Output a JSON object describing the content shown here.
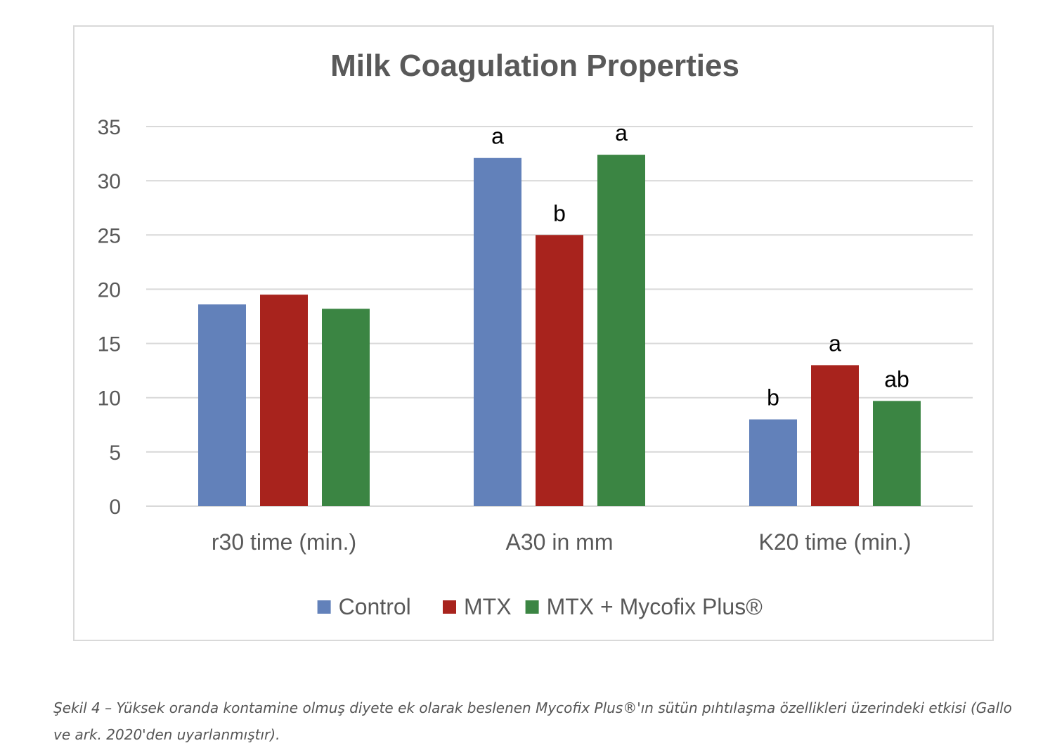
{
  "chart_data": {
    "type": "bar",
    "title": "Milk Coagulation Properties",
    "categories": [
      "r30 time (min.)",
      "A30 in mm",
      "K20 time (min.)"
    ],
    "series": [
      {
        "name": "Control",
        "color": "#6281ba",
        "values": [
          18.6,
          32.1,
          8.0
        ],
        "labels": [
          "",
          "a",
          "b"
        ]
      },
      {
        "name": "MTX",
        "color": "#a8231d",
        "values": [
          19.5,
          25.0,
          13.0
        ],
        "labels": [
          "",
          "b",
          "a"
        ]
      },
      {
        "name": "MTX + Mycofix Plus®",
        "color": "#3b8543",
        "values": [
          18.2,
          32.4,
          9.7
        ],
        "labels": [
          "",
          "a",
          "ab"
        ]
      }
    ],
    "yticks": [
      0,
      5,
      10,
      15,
      20,
      25,
      30,
      35
    ],
    "ylim": [
      0,
      35
    ],
    "grid": true,
    "legend": "bottom",
    "xlabel": "",
    "ylabel": ""
  },
  "caption": "Şekil 4 – Yüksek oranda kontamine olmuş diyete ek olarak beslenen Mycofix Plus®'ın sütün pıhtılaşma özellikleri üzerindeki etkisi (Gallo ve ark. 2020'den uyarlanmıştır)."
}
